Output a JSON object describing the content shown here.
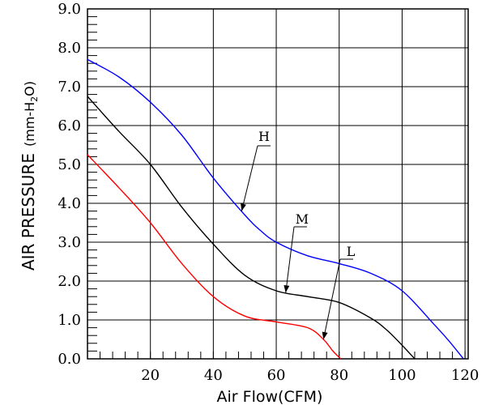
{
  "chart_data": {
    "type": "line",
    "title": "",
    "xlabel": "Air Flow(CFM)",
    "ylabel_main": "AIR PRESSURE",
    "ylabel_unit": "(mm-H",
    "ylabel_sub": "2",
    "ylabel_end": "O)",
    "xlim": [
      0,
      121
    ],
    "ylim": [
      0,
      9
    ],
    "grid": true,
    "x_ticks": [
      20,
      40,
      60,
      80,
      100,
      120
    ],
    "x_tick_labels": [
      "20",
      "40",
      "60",
      "80",
      "100",
      "120"
    ],
    "y_ticks": [
      0,
      1,
      2,
      3,
      4,
      5,
      6,
      7,
      8,
      9
    ],
    "y_tick_labels": [
      "0.0",
      "1.0",
      "2.0",
      "3.0",
      "4.0",
      "5.0",
      "6.0",
      "7.0",
      "8.0",
      "9.0"
    ],
    "series": [
      {
        "name": "H",
        "color": "#0000ff",
        "x": [
          0,
          10,
          20,
          30,
          40,
          50,
          55,
          60,
          70,
          80,
          90,
          100,
          110,
          115,
          119.5
        ],
        "y": [
          7.7,
          7.25,
          6.6,
          5.75,
          4.65,
          3.7,
          3.3,
          3.0,
          2.65,
          2.45,
          2.2,
          1.75,
          0.9,
          0.45,
          0.0
        ]
      },
      {
        "name": "M",
        "color": "#000000",
        "x": [
          0,
          10,
          20,
          30,
          40,
          50,
          60,
          70,
          80,
          90,
          95,
          100,
          104
        ],
        "y": [
          6.75,
          5.85,
          5.0,
          3.9,
          2.95,
          2.15,
          1.75,
          1.6,
          1.45,
          1.05,
          0.75,
          0.35,
          0.0
        ]
      },
      {
        "name": "L",
        "color": "#ff0000",
        "x": [
          0,
          10,
          20,
          30,
          40,
          50,
          60,
          70,
          75,
          78,
          80.5
        ],
        "y": [
          5.25,
          4.4,
          3.5,
          2.45,
          1.6,
          1.1,
          0.95,
          0.8,
          0.5,
          0.2,
          0.0
        ]
      }
    ],
    "annotations": [
      {
        "text": "H",
        "series": "H",
        "arrow_to_x": 49,
        "arrow_to_y": 3.8
      },
      {
        "text": "M",
        "series": "M",
        "arrow_to_x": 63,
        "arrow_to_y": 1.7
      },
      {
        "text": "L",
        "series": "L",
        "arrow_to_x": 75,
        "arrow_to_y": 0.5
      }
    ]
  }
}
